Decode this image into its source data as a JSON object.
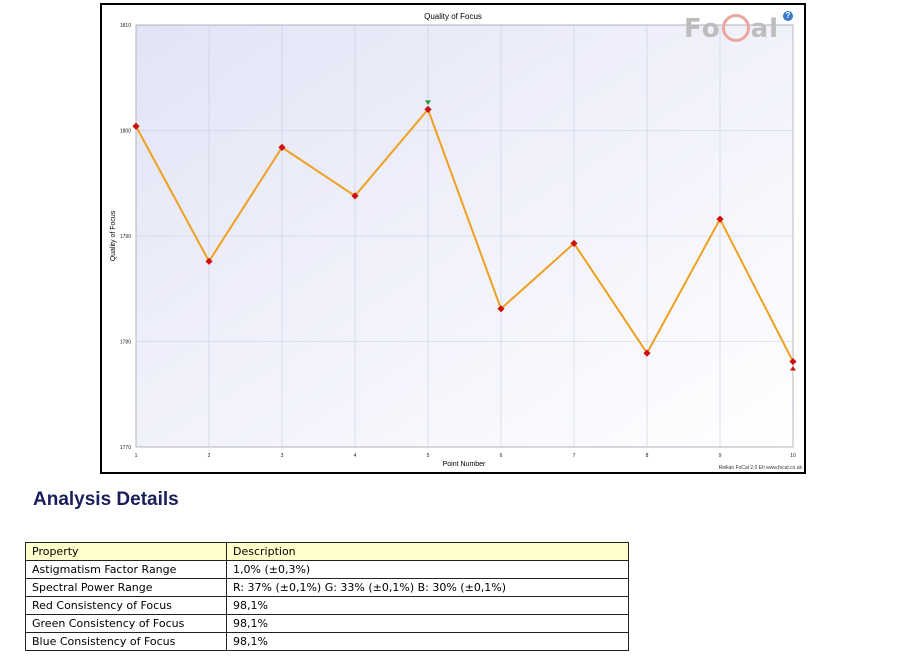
{
  "chart_data": {
    "type": "line",
    "title": "Quality of Focus",
    "xlabel": "Point Number",
    "ylabel": "Quality of Focus",
    "x": [
      1,
      2,
      3,
      4,
      5,
      6,
      7,
      8,
      9,
      10
    ],
    "x_ticks": [
      "1",
      "2",
      "3",
      "4",
      "5",
      "6",
      "7",
      "8",
      "9",
      "10"
    ],
    "y_ticks": [
      "1770",
      "1780",
      "1790",
      "1800",
      "1810"
    ],
    "ylim": [
      1770,
      1810
    ],
    "series": [
      {
        "values": [
          1800.4,
          1787.6,
          1798.4,
          1793.8,
          1802.0,
          1783.1,
          1789.3,
          1778.9,
          1791.6,
          1778.1
        ]
      }
    ],
    "markers": {
      "best_point": 5,
      "worst_point": 10
    },
    "grid": true,
    "line_color": "#f0a020",
    "marker_color": "#cc1010",
    "best_marker_color": "#1a9a3a",
    "plot_background": "#eef0fb"
  },
  "chart": {
    "logo_text_left": "Fo",
    "logo_text_right": "al",
    "help_label": "?",
    "credit": "Reikan FoCal 2.0 Eh  www.focal.co.uk"
  },
  "analysis": {
    "title": "Analysis Details",
    "headers": [
      "Property",
      "Description"
    ],
    "rows": [
      {
        "property": "Astigmatism Factor Range",
        "description": "1,0% (±0,3%)"
      },
      {
        "property": "Spectral Power Range",
        "description": "R: 37% (±0,1%) G: 33% (±0,1%) B: 30% (±0,1%)"
      },
      {
        "property": "Red Consistency of Focus",
        "description": "98,1%"
      },
      {
        "property": "Green Consistency of Focus",
        "description": "98,1%"
      },
      {
        "property": "Blue Consistency of Focus",
        "description": "98,1%"
      }
    ]
  }
}
